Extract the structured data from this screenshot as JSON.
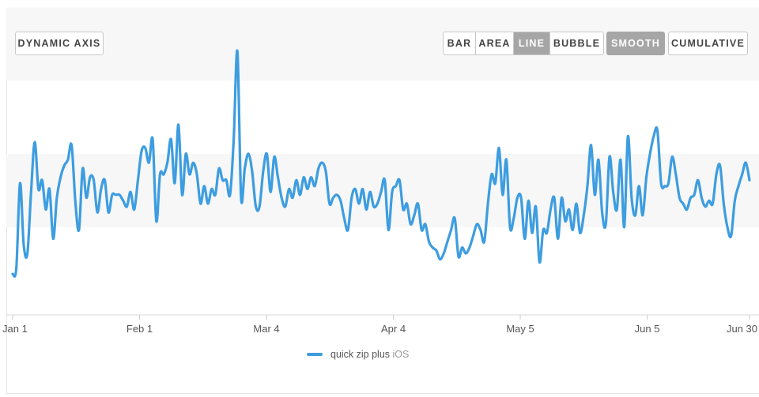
{
  "controls": {
    "dynamic_axis": "DYNAMIC AXIS",
    "types": [
      "BAR",
      "AREA",
      "LINE",
      "BUBBLE"
    ],
    "active_type": "LINE",
    "smooth": "SMOOTH",
    "cumulative": "CUMULATIVE"
  },
  "colors": {
    "series": "#3d9de0",
    "band": "#f7f7f7",
    "active_button": "#a6a6a6"
  },
  "chart_data": {
    "type": "line",
    "smooth": true,
    "x_ticks": [
      "Jan 1",
      "Feb 1",
      "Mar 4",
      "Apr 4",
      "May 5",
      "Jun 5",
      "Jun 30"
    ],
    "x_tick_days": [
      0,
      31,
      62,
      93,
      124,
      155,
      180
    ],
    "ylim": [
      0,
      100
    ],
    "grid": "alternating horizontal bands, no y-axis labels",
    "legend_position": "bottom-center",
    "series": [
      {
        "name": "quick zip plus",
        "name_suffix": "iOS",
        "values": [
          14,
          16,
          45,
          24,
          21,
          42,
          59,
          43,
          46,
          36,
          43,
          26,
          40,
          47,
          51,
          53,
          58,
          39,
          29,
          50,
          40,
          47,
          46,
          35,
          43,
          46,
          35,
          41,
          41,
          41,
          39,
          37,
          42,
          36,
          46,
          56,
          57,
          52,
          60,
          32,
          48,
          48,
          52,
          60,
          45,
          65,
          41,
          55,
          48,
          52,
          48,
          38,
          44,
          38,
          43,
          41,
          50,
          46,
          46,
          41,
          60,
          90,
          40,
          50,
          55,
          49,
          37,
          37,
          49,
          55,
          42,
          54,
          47,
          40,
          37,
          43,
          40,
          46,
          41,
          47,
          43,
          47,
          44,
          50,
          52,
          49,
          38,
          40,
          41,
          39,
          33,
          29,
          40,
          43,
          38,
          43,
          36,
          42,
          37,
          38,
          42,
          46,
          29,
          42,
          44,
          46,
          36,
          38,
          31,
          34,
          38,
          29,
          31,
          25,
          23,
          22,
          19,
          21,
          25,
          29,
          33,
          20,
          23,
          21,
          23,
          27,
          31,
          29,
          25,
          38,
          48,
          45,
          57,
          41,
          53,
          30,
          33,
          40,
          40,
          26,
          39,
          28,
          37,
          18,
          29,
          28,
          36,
          40,
          26,
          40,
          32,
          36,
          29,
          38,
          28,
          34,
          44,
          58,
          41,
          53,
          35,
          31,
          54,
          42,
          36,
          53,
          30,
          61,
          40,
          34,
          44,
          34,
          47,
          55,
          61,
          63,
          45,
          44,
          45,
          54,
          48,
          40,
          38,
          36,
          40,
          41,
          46,
          40,
          37,
          39,
          38,
          48,
          51,
          38,
          30,
          27,
          39,
          44,
          48,
          52,
          46
        ]
      }
    ]
  }
}
